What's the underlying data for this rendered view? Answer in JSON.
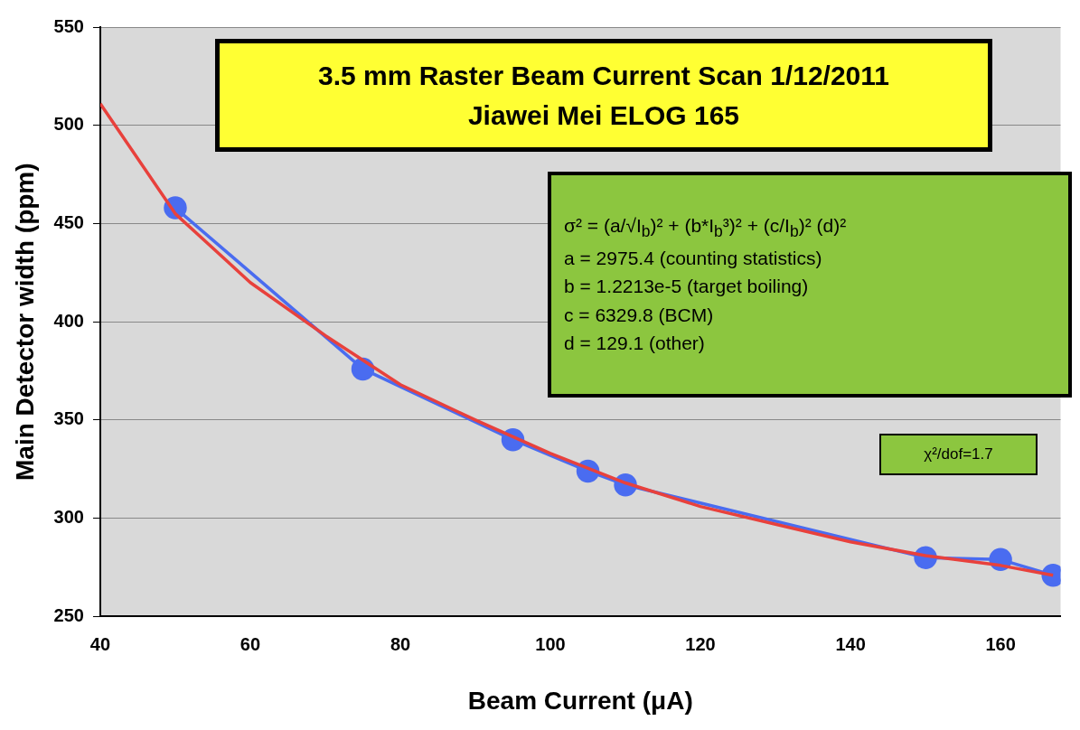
{
  "chart_data": {
    "type": "line",
    "xlabel": "Beam Current (μA)",
    "ylabel": "Main Detector width (ppm)",
    "xlim": [
      40,
      168
    ],
    "xticks": [
      40,
      60,
      80,
      100,
      120,
      140,
      160
    ],
    "ylim": [
      250,
      550
    ],
    "yticks": [
      250,
      300,
      350,
      400,
      450,
      500,
      550
    ],
    "grid": "y",
    "legend": false,
    "series": [
      {
        "color": "#4a6cf0",
        "marker": "circle",
        "x": [
          50,
          75,
          95,
          105,
          110,
          150,
          160,
          167
        ],
        "values": [
          458,
          376,
          340,
          324,
          317,
          280,
          279,
          271
        ]
      },
      {
        "color": "#e8413c",
        "marker": "none",
        "x": [
          40,
          50,
          60,
          70,
          80,
          90,
          100,
          110,
          120,
          130,
          140,
          150,
          160,
          167
        ],
        "values": [
          511,
          455,
          420,
          393,
          368,
          350,
          333,
          318,
          306,
          297,
          288,
          281,
          276,
          271
        ]
      }
    ],
    "annotations": [
      "3.5 mm Raster Beam Current Scan 1/12/2011\nJiawei Mei ELOG 165",
      "σ² = (a/√I$_{b}$)² + (b*I$_{b}$³)²  + (c/I$_{b}$)²  (d)²\na = 2975.4 (counting statistics)\nb = 1.2213e-5 (target boiling)\nc = 6329.8 (BCM)\nd = 129.1 (other)",
      "χ²/dof=1.7"
    ]
  }
}
